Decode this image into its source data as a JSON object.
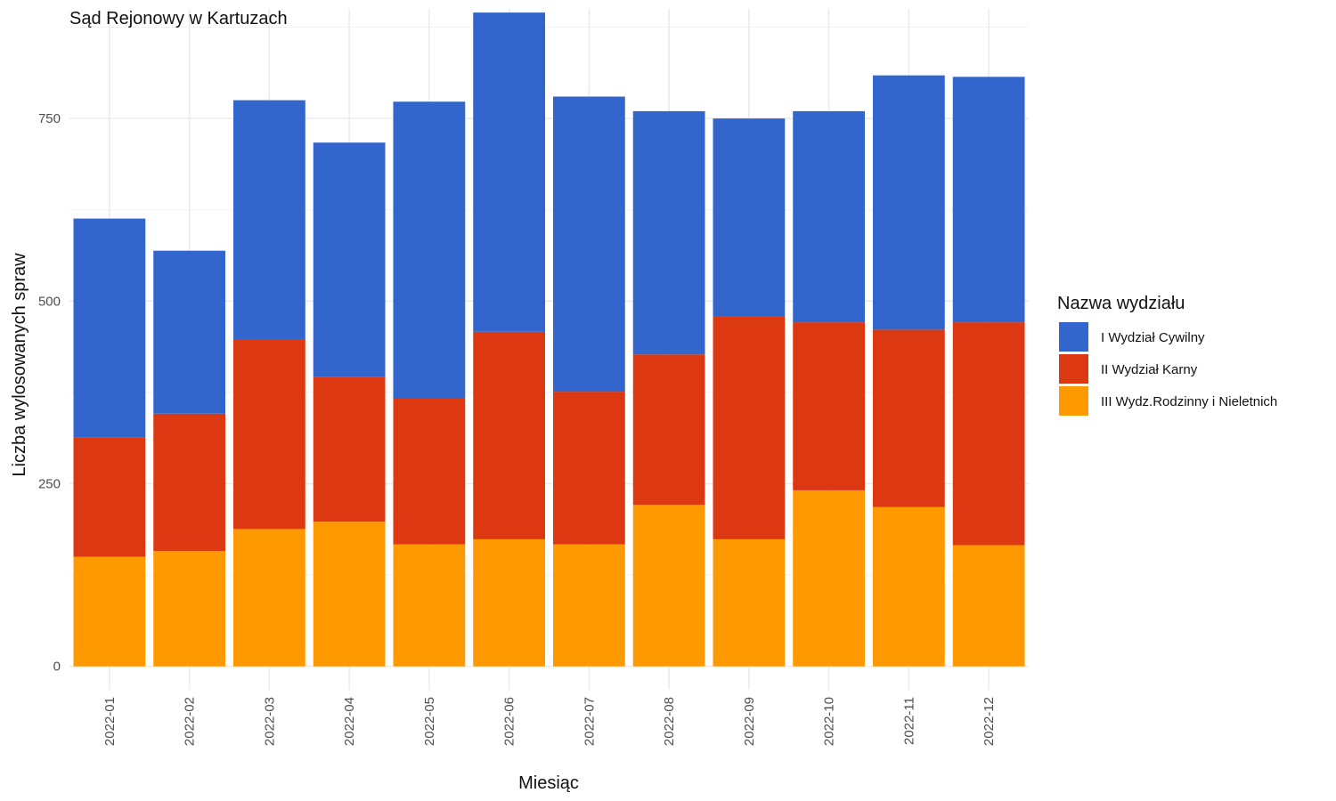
{
  "chart_data": {
    "type": "bar",
    "stacked": true,
    "title": "Sąd Rejonowy w Kartuzach",
    "xlabel": "Miesiąc",
    "ylabel": "Liczba wylosowanych spraw",
    "ylim": [
      -32,
      900
    ],
    "yticks": [
      0,
      250,
      500,
      750
    ],
    "grid": true,
    "legend_title": "Nazwa wydziału",
    "legend_position": "right",
    "categories": [
      "2022-01",
      "2022-02",
      "2022-03",
      "2022-04",
      "2022-05",
      "2022-06",
      "2022-07",
      "2022-08",
      "2022-09",
      "2022-10",
      "2022-11",
      "2022-12"
    ],
    "series": [
      {
        "name": "III Wydz.Rodzinny i Nieletnich",
        "color": "#FF9900",
        "values": [
          150,
          158,
          188,
          198,
          167,
          174,
          167,
          221,
          174,
          241,
          218,
          166
        ]
      },
      {
        "name": "II Wydział Karny",
        "color": "#DC3912",
        "values": [
          163,
          188,
          260,
          198,
          200,
          284,
          209,
          206,
          305,
          230,
          243,
          305
        ]
      },
      {
        "name": "I Wydział Cywilny",
        "color": "#3366CC",
        "values": [
          300,
          223,
          327,
          321,
          406,
          437,
          404,
          333,
          271,
          289,
          348,
          336
        ]
      }
    ]
  }
}
